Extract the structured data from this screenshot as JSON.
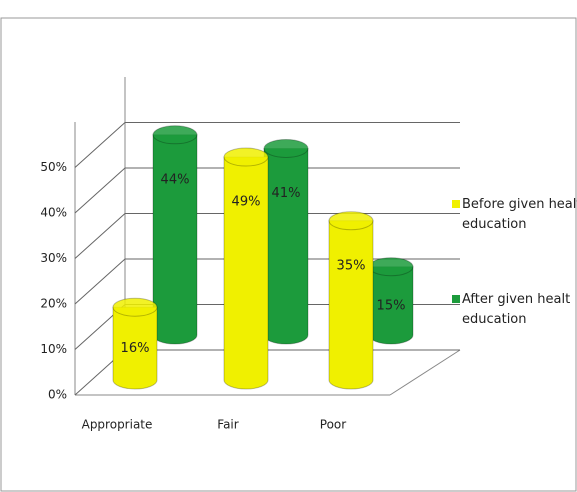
{
  "chart_data": {
    "type": "bar3d",
    "categories": [
      "Appropriate",
      "Fair",
      "Poor"
    ],
    "series": [
      {
        "name": "Before given healt education",
        "color": "#f0f000",
        "values": [
          16,
          49,
          35
        ],
        "value_labels": [
          "16%",
          "49%",
          "35%"
        ]
      },
      {
        "name": "After given healt education",
        "color": "#1c9b3c",
        "values": [
          44,
          41,
          15
        ],
        "value_labels": [
          "44%",
          "41%",
          "15%"
        ]
      }
    ],
    "ylim": [
      0,
      60
    ],
    "yticks": [
      {
        "value": 0,
        "label": "0%"
      },
      {
        "value": 10,
        "label": "10%"
      },
      {
        "value": 20,
        "label": "20%"
      },
      {
        "value": 30,
        "label": "30%"
      },
      {
        "value": 40,
        "label": "40%"
      },
      {
        "value": 50,
        "label": "50%"
      }
    ],
    "grid": true,
    "legend": "right"
  }
}
